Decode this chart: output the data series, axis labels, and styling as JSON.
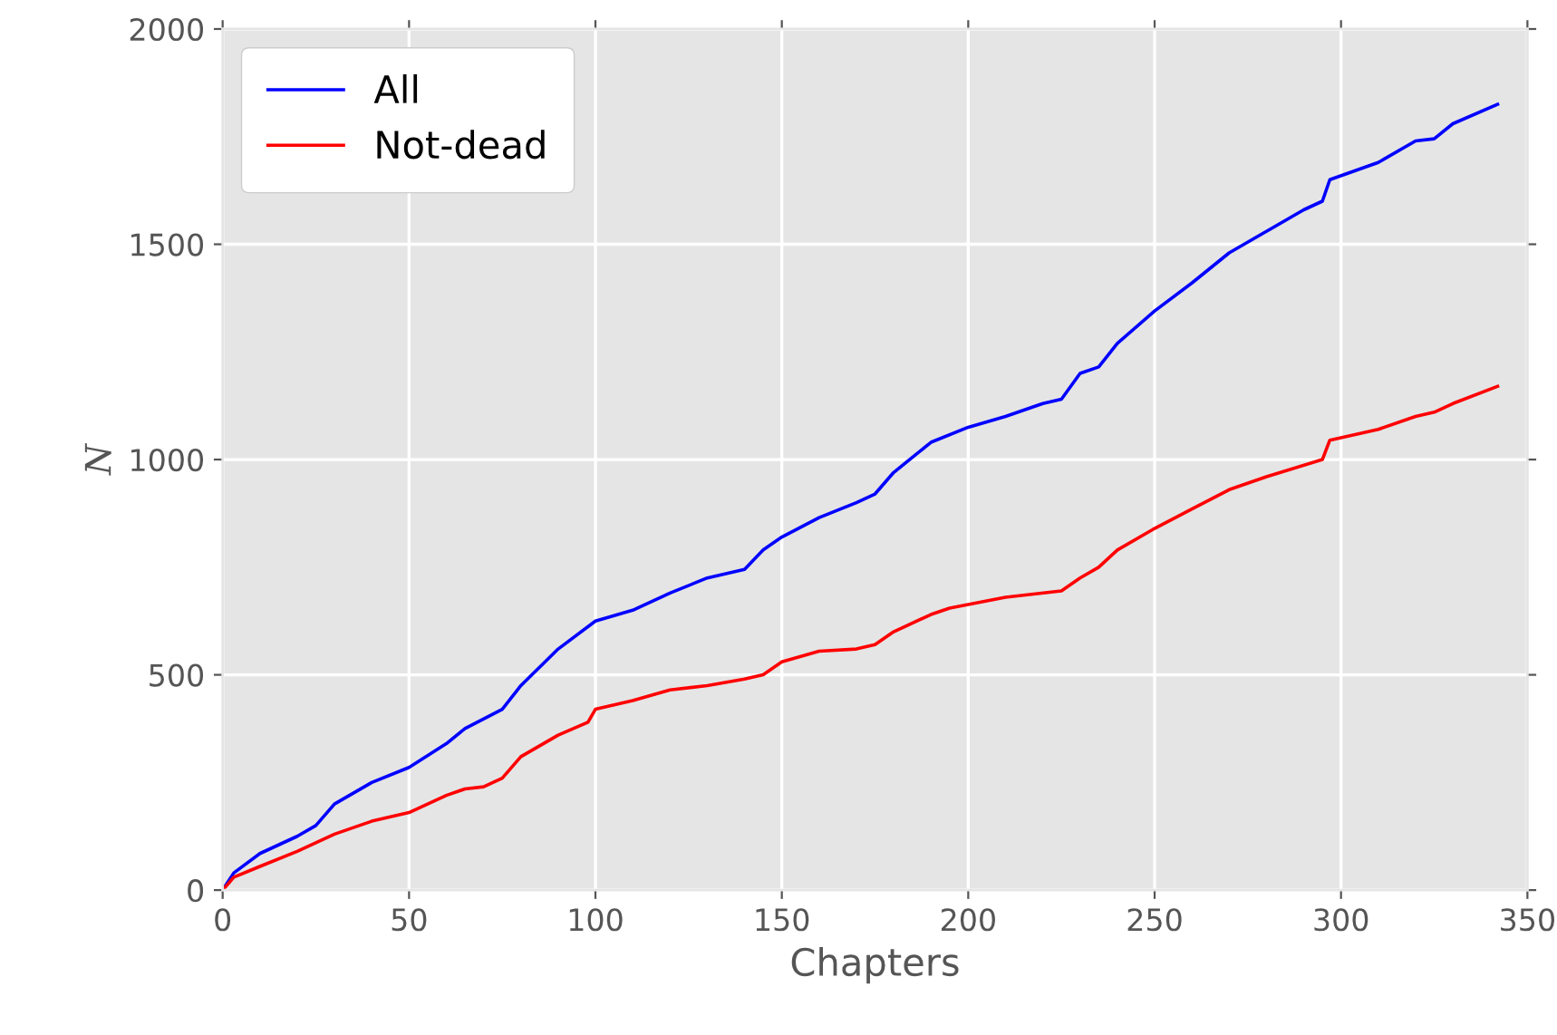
{
  "chart_data": {
    "type": "line",
    "xlabel": "Chapters",
    "ylabel": "N",
    "xlim": [
      0,
      350
    ],
    "ylim": [
      0,
      2000
    ],
    "xticks": [
      0,
      50,
      100,
      150,
      200,
      250,
      300,
      350
    ],
    "yticks": [
      0,
      500,
      1000,
      1500,
      2000
    ],
    "grid": true,
    "legend": "top left",
    "marker": "none",
    "line_style": "solid",
    "series": [
      {
        "name": "All",
        "color": "#0000ff",
        "x": [
          0,
          3,
          10,
          20,
          25,
          30,
          40,
          50,
          60,
          65,
          75,
          80,
          90,
          100,
          110,
          120,
          130,
          140,
          145,
          150,
          160,
          170,
          175,
          180,
          190,
          200,
          210,
          220,
          225,
          230,
          235,
          240,
          250,
          260,
          270,
          280,
          290,
          295,
          297,
          310,
          320,
          325,
          330,
          342
        ],
        "values": [
          0,
          40,
          85,
          125,
          150,
          200,
          250,
          285,
          340,
          375,
          420,
          475,
          560,
          625,
          650,
          690,
          725,
          745,
          790,
          820,
          865,
          900,
          920,
          970,
          1040,
          1075,
          1100,
          1130,
          1140,
          1200,
          1215,
          1270,
          1345,
          1410,
          1480,
          1530,
          1580,
          1600,
          1650,
          1690,
          1740,
          1745,
          1780,
          1825
        ]
      },
      {
        "name": "Not-dead",
        "color": "#ff0000",
        "x": [
          0,
          3,
          10,
          20,
          30,
          40,
          50,
          60,
          65,
          70,
          75,
          80,
          90,
          98,
          100,
          110,
          120,
          130,
          140,
          145,
          150,
          160,
          170,
          175,
          180,
          190,
          195,
          210,
          225,
          230,
          235,
          240,
          250,
          260,
          270,
          280,
          295,
          297,
          310,
          320,
          325,
          330,
          342
        ],
        "values": [
          0,
          30,
          55,
          90,
          130,
          160,
          180,
          220,
          235,
          240,
          260,
          310,
          360,
          390,
          420,
          440,
          465,
          475,
          490,
          500,
          530,
          555,
          560,
          570,
          600,
          640,
          655,
          680,
          695,
          725,
          750,
          790,
          840,
          885,
          930,
          960,
          1000,
          1045,
          1070,
          1100,
          1110,
          1130,
          1170
        ]
      }
    ]
  }
}
